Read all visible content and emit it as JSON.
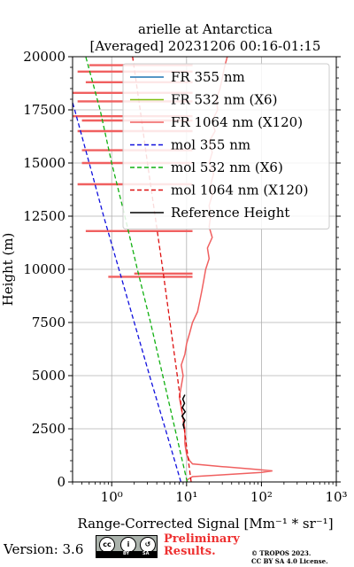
{
  "chart_data": {
    "type": "line",
    "title": "arielle at Antarctica",
    "subtitle": "[Averaged] 20231206 00:16-01:15",
    "xlabel": "Range-Corrected Signal [Mm⁻¹ * sr⁻¹]",
    "ylabel": "Height (m)",
    "x_scale": "log",
    "xlim": [
      0.3,
      1000
    ],
    "ylim": [
      0,
      20000
    ],
    "x_ticks": [
      {
        "v": 1,
        "label": "10⁰"
      },
      {
        "v": 10,
        "label": "10¹"
      },
      {
        "v": 100,
        "label": "10²"
      },
      {
        "v": 1000,
        "label": "10³"
      }
    ],
    "y_ticks": [
      0,
      2500,
      5000,
      7500,
      10000,
      12500,
      15000,
      17500,
      20000
    ],
    "grid": true,
    "legend_position": "top-right",
    "series": [
      {
        "name": "FR 355 nm",
        "color": "#1f77b4",
        "style": "solid",
        "points": []
      },
      {
        "name": "FR 532 nm (X6)",
        "color": "#7fbf10",
        "style": "solid",
        "points": []
      },
      {
        "name": "FR 1064 nm (X120)",
        "color": "#f06060",
        "style": "solid",
        "points": [
          [
            10,
            80
          ],
          [
            12,
            250
          ],
          [
            35,
            350
          ],
          [
            100,
            450
          ],
          [
            140,
            520
          ],
          [
            80,
            600
          ],
          [
            30,
            720
          ],
          [
            12,
            850
          ],
          [
            11,
            1000
          ],
          [
            10,
            1300
          ],
          [
            9.5,
            1800
          ],
          [
            9.5,
            2500
          ],
          [
            9,
            3000
          ],
          [
            8.5,
            3500
          ],
          [
            8,
            4000
          ],
          [
            8.5,
            4500
          ],
          [
            9,
            5000
          ],
          [
            8.5,
            5500
          ],
          [
            9.5,
            6000
          ],
          [
            10,
            6500
          ],
          [
            11,
            7000
          ],
          [
            12,
            7500
          ],
          [
            14,
            8000
          ],
          [
            15,
            8500
          ],
          [
            16,
            9000
          ],
          [
            17,
            9500
          ],
          [
            18,
            10000
          ],
          [
            20,
            10500
          ],
          [
            19,
            11000
          ],
          [
            22,
            11500
          ],
          [
            20,
            12000
          ],
          [
            21,
            12500
          ],
          [
            20,
            13000
          ],
          [
            22,
            13500
          ],
          [
            21,
            14000
          ],
          [
            23,
            14500
          ],
          [
            20,
            15000
          ],
          [
            22,
            15500
          ],
          [
            20,
            16000
          ],
          [
            24,
            16500
          ],
          [
            22,
            17000
          ],
          [
            26,
            17500
          ],
          [
            25,
            18000
          ],
          [
            28,
            18500
          ],
          [
            30,
            19000
          ],
          [
            32,
            19500
          ],
          [
            35,
            20000
          ]
        ],
        "spikes": [
          [
            0.9,
            9650
          ],
          [
            2.0,
            9800
          ],
          [
            0.45,
            11800
          ],
          [
            0.35,
            14000
          ],
          [
            0.4,
            15000
          ],
          [
            0.4,
            15600
          ],
          [
            0.35,
            16500
          ],
          [
            0.4,
            17000
          ],
          [
            0.3,
            17200
          ],
          [
            0.35,
            17900
          ],
          [
            0.3,
            18300
          ],
          [
            0.45,
            18800
          ],
          [
            0.35,
            19300
          ],
          [
            0.5,
            19600
          ]
        ]
      },
      {
        "name": "mol 355 nm",
        "color": "#1010dd",
        "style": "dashed",
        "points": [
          [
            8.4,
            0
          ],
          [
            5.2,
            2500
          ],
          [
            3.2,
            5000
          ],
          [
            2.0,
            7500
          ],
          [
            1.25,
            10000
          ],
          [
            0.78,
            12500
          ],
          [
            0.5,
            15000
          ],
          [
            0.32,
            17500
          ],
          [
            0.2,
            20000
          ]
        ]
      },
      {
        "name": "mol 532 nm (X6)",
        "color": "#10b010",
        "style": "dashed",
        "points": [
          [
            10.2,
            0
          ],
          [
            7.0,
            2500
          ],
          [
            4.8,
            5000
          ],
          [
            3.3,
            7500
          ],
          [
            2.2,
            10000
          ],
          [
            1.5,
            12500
          ],
          [
            1.0,
            15000
          ],
          [
            0.7,
            17500
          ],
          [
            0.45,
            20000
          ]
        ]
      },
      {
        "name": "mol 1064 nm (X120)",
        "color": "#dd1010",
        "style": "dashed",
        "points": [
          [
            11.5,
            0
          ],
          [
            9.3,
            2500
          ],
          [
            7.5,
            5000
          ],
          [
            6.0,
            7500
          ],
          [
            4.8,
            10000
          ],
          [
            3.8,
            12500
          ],
          [
            3.0,
            15000
          ],
          [
            2.4,
            17500
          ],
          [
            1.9,
            20000
          ]
        ]
      },
      {
        "name": "Reference Height",
        "color": "#000000",
        "style": "solid",
        "points": [
          [
            9.3,
            2500
          ],
          [
            9.0,
            2700
          ],
          [
            9.5,
            2900
          ],
          [
            8.7,
            3100
          ],
          [
            9.6,
            3300
          ],
          [
            8.8,
            3500
          ],
          [
            9.4,
            3700
          ],
          [
            8.9,
            3900
          ],
          [
            9.5,
            4100
          ]
        ]
      }
    ]
  },
  "footer": {
    "version": "Version: 3.6",
    "license_badge": {
      "by": "BY",
      "sa": "SA"
    },
    "preliminary": "Preliminary",
    "results": "Results.",
    "copyright": "© TROPOS 2023.",
    "license": "CC BY SA 4.0 License."
  }
}
